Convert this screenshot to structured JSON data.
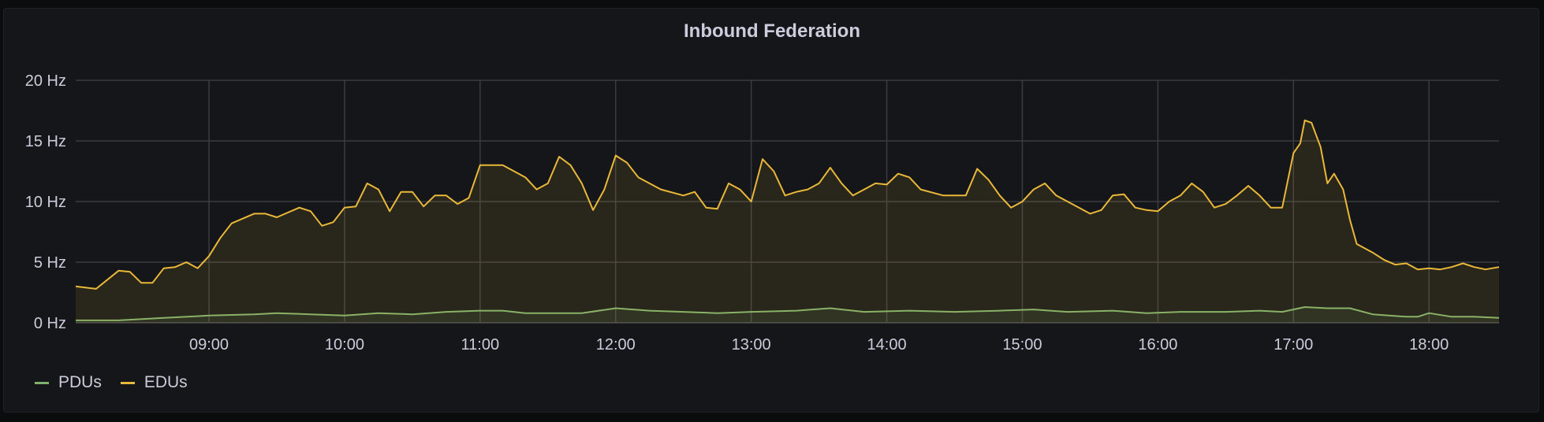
{
  "chart_data": {
    "type": "area",
    "title": "Inbound Federation",
    "xlabel": "",
    "ylabel": "",
    "xlim": [
      "08:01",
      "18:31"
    ],
    "ylim": [
      0,
      20
    ],
    "y_ticks": [
      "0 Hz",
      "5 Hz",
      "10 Hz",
      "15 Hz",
      "20 Hz"
    ],
    "y_tick_values": [
      0,
      5,
      10,
      15,
      20
    ],
    "x_ticks": [
      "09:00",
      "10:00",
      "11:00",
      "12:00",
      "13:00",
      "14:00",
      "15:00",
      "16:00",
      "17:00",
      "18:00"
    ],
    "grid": true,
    "legend_placement": "bottom-left",
    "series": [
      {
        "name": "PDUs",
        "color": "#7EB26D",
        "points": [
          [
            "08:01",
            0.2
          ],
          [
            "08:20",
            0.2
          ],
          [
            "08:40",
            0.4
          ],
          [
            "09:00",
            0.6
          ],
          [
            "09:20",
            0.7
          ],
          [
            "09:30",
            0.8
          ],
          [
            "09:45",
            0.7
          ],
          [
            "10:00",
            0.6
          ],
          [
            "10:15",
            0.8
          ],
          [
            "10:30",
            0.7
          ],
          [
            "10:45",
            0.9
          ],
          [
            "11:00",
            1.0
          ],
          [
            "11:10",
            1.0
          ],
          [
            "11:20",
            0.8
          ],
          [
            "11:45",
            0.8
          ],
          [
            "12:00",
            1.2
          ],
          [
            "12:15",
            1.0
          ],
          [
            "12:30",
            0.9
          ],
          [
            "12:45",
            0.8
          ],
          [
            "13:00",
            0.9
          ],
          [
            "13:20",
            1.0
          ],
          [
            "13:35",
            1.2
          ],
          [
            "13:50",
            0.9
          ],
          [
            "14:10",
            1.0
          ],
          [
            "14:30",
            0.9
          ],
          [
            "14:50",
            1.0
          ],
          [
            "15:05",
            1.1
          ],
          [
            "15:20",
            0.9
          ],
          [
            "15:40",
            1.0
          ],
          [
            "15:55",
            0.8
          ],
          [
            "16:10",
            0.9
          ],
          [
            "16:30",
            0.9
          ],
          [
            "16:45",
            1.0
          ],
          [
            "16:55",
            0.9
          ],
          [
            "17:05",
            1.3
          ],
          [
            "17:15",
            1.2
          ],
          [
            "17:25",
            1.2
          ],
          [
            "17:35",
            0.7
          ],
          [
            "17:50",
            0.5
          ],
          [
            "17:55",
            0.5
          ],
          [
            "18:00",
            0.8
          ],
          [
            "18:10",
            0.5
          ],
          [
            "18:20",
            0.5
          ],
          [
            "18:31",
            0.4
          ]
        ]
      },
      {
        "name": "EDUs",
        "color": "#EAB839",
        "points": [
          [
            "08:01",
            3.0
          ],
          [
            "08:10",
            2.8
          ],
          [
            "08:20",
            4.3
          ],
          [
            "08:25",
            4.2
          ],
          [
            "08:30",
            3.3
          ],
          [
            "08:35",
            3.3
          ],
          [
            "08:40",
            4.5
          ],
          [
            "08:45",
            4.6
          ],
          [
            "08:50",
            5.0
          ],
          [
            "08:55",
            4.5
          ],
          [
            "09:00",
            5.5
          ],
          [
            "09:05",
            7.0
          ],
          [
            "09:10",
            8.2
          ],
          [
            "09:20",
            9.0
          ],
          [
            "09:25",
            9.0
          ],
          [
            "09:30",
            8.7
          ],
          [
            "09:40",
            9.5
          ],
          [
            "09:45",
            9.2
          ],
          [
            "09:50",
            8.0
          ],
          [
            "09:55",
            8.3
          ],
          [
            "10:00",
            9.5
          ],
          [
            "10:05",
            9.6
          ],
          [
            "10:10",
            11.5
          ],
          [
            "10:15",
            11.0
          ],
          [
            "10:20",
            9.2
          ],
          [
            "10:25",
            10.8
          ],
          [
            "10:30",
            10.8
          ],
          [
            "10:35",
            9.6
          ],
          [
            "10:40",
            10.5
          ],
          [
            "10:45",
            10.5
          ],
          [
            "10:50",
            9.8
          ],
          [
            "10:55",
            10.3
          ],
          [
            "11:00",
            13.0
          ],
          [
            "11:10",
            13.0
          ],
          [
            "11:20",
            12.0
          ],
          [
            "11:25",
            11.0
          ],
          [
            "11:30",
            11.5
          ],
          [
            "11:35",
            13.7
          ],
          [
            "11:40",
            13.0
          ],
          [
            "11:45",
            11.5
          ],
          [
            "11:50",
            9.3
          ],
          [
            "11:55",
            11.0
          ],
          [
            "12:00",
            13.8
          ],
          [
            "12:05",
            13.2
          ],
          [
            "12:10",
            12.0
          ],
          [
            "12:20",
            11.0
          ],
          [
            "12:30",
            10.5
          ],
          [
            "12:35",
            10.8
          ],
          [
            "12:40",
            9.5
          ],
          [
            "12:45",
            9.4
          ],
          [
            "12:50",
            11.5
          ],
          [
            "12:55",
            11.0
          ],
          [
            "13:00",
            10.0
          ],
          [
            "13:05",
            13.5
          ],
          [
            "13:10",
            12.5
          ],
          [
            "13:15",
            10.5
          ],
          [
            "13:20",
            10.8
          ],
          [
            "13:25",
            11.0
          ],
          [
            "13:30",
            11.5
          ],
          [
            "13:35",
            12.8
          ],
          [
            "13:40",
            11.5
          ],
          [
            "13:45",
            10.5
          ],
          [
            "13:50",
            11.0
          ],
          [
            "13:55",
            11.5
          ],
          [
            "14:00",
            11.4
          ],
          [
            "14:05",
            12.3
          ],
          [
            "14:10",
            12.0
          ],
          [
            "14:15",
            11.0
          ],
          [
            "14:25",
            10.5
          ],
          [
            "14:35",
            10.5
          ],
          [
            "14:40",
            12.7
          ],
          [
            "14:45",
            11.8
          ],
          [
            "14:50",
            10.5
          ],
          [
            "14:55",
            9.5
          ],
          [
            "15:00",
            10.0
          ],
          [
            "15:05",
            11.0
          ],
          [
            "15:10",
            11.5
          ],
          [
            "15:15",
            10.5
          ],
          [
            "15:20",
            10.0
          ],
          [
            "15:30",
            9.0
          ],
          [
            "15:35",
            9.3
          ],
          [
            "15:40",
            10.5
          ],
          [
            "15:45",
            10.6
          ],
          [
            "15:50",
            9.5
          ],
          [
            "15:55",
            9.3
          ],
          [
            "16:00",
            9.2
          ],
          [
            "16:05",
            10.0
          ],
          [
            "16:10",
            10.5
          ],
          [
            "16:15",
            11.5
          ],
          [
            "16:20",
            10.8
          ],
          [
            "16:25",
            9.5
          ],
          [
            "16:30",
            9.8
          ],
          [
            "16:35",
            10.5
          ],
          [
            "16:40",
            11.3
          ],
          [
            "16:45",
            10.5
          ],
          [
            "16:50",
            9.5
          ],
          [
            "16:55",
            9.5
          ],
          [
            "17:00",
            14.0
          ],
          [
            "17:03",
            14.8
          ],
          [
            "17:05",
            16.7
          ],
          [
            "17:08",
            16.5
          ],
          [
            "17:10",
            15.5
          ],
          [
            "17:12",
            14.5
          ],
          [
            "17:15",
            11.5
          ],
          [
            "17:18",
            12.3
          ],
          [
            "17:22",
            11.0
          ],
          [
            "17:25",
            8.5
          ],
          [
            "17:28",
            6.5
          ],
          [
            "17:35",
            5.8
          ],
          [
            "17:40",
            5.2
          ],
          [
            "17:45",
            4.8
          ],
          [
            "17:50",
            4.9
          ],
          [
            "17:55",
            4.4
          ],
          [
            "18:00",
            4.5
          ],
          [
            "18:05",
            4.4
          ],
          [
            "18:10",
            4.6
          ],
          [
            "18:15",
            4.9
          ],
          [
            "18:20",
            4.6
          ],
          [
            "18:25",
            4.4
          ],
          [
            "18:31",
            4.6
          ]
        ]
      }
    ]
  }
}
